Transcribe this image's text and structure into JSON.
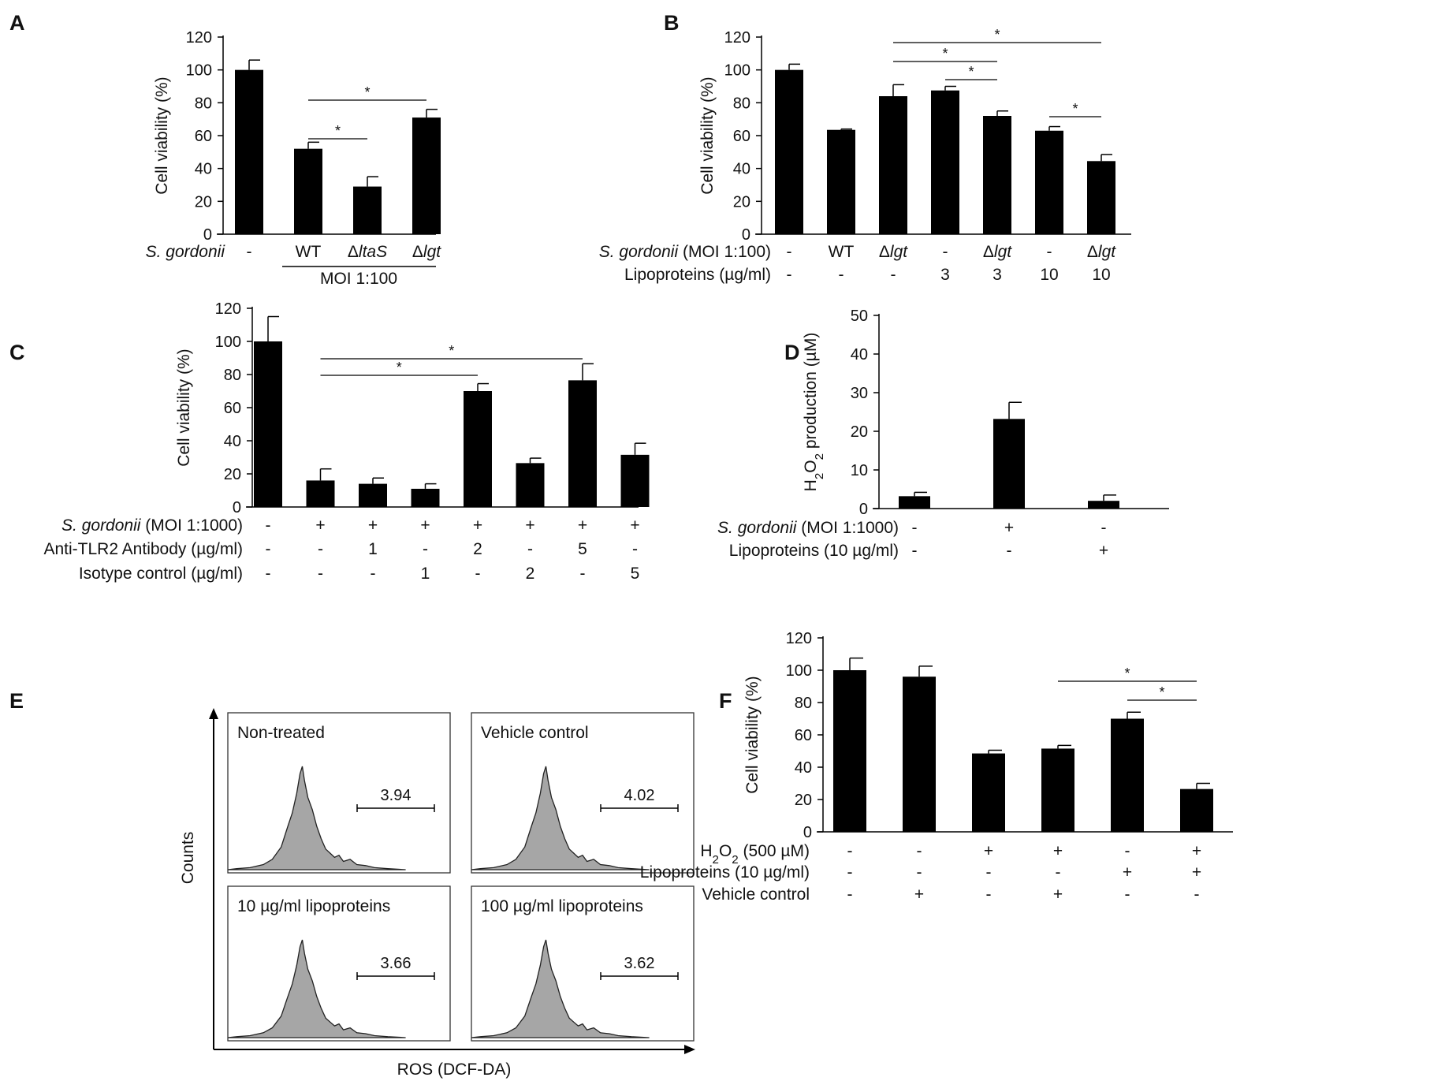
{
  "figure": {
    "panels": [
      "A",
      "B",
      "C",
      "D",
      "E",
      "F"
    ]
  },
  "chart_data": [
    {
      "panel": "A",
      "type": "bar",
      "ylabel": "Cell viability (%)",
      "ylim": [
        0,
        120
      ],
      "yticks": [
        0,
        20,
        40,
        60,
        80,
        100,
        120
      ],
      "values": [
        100,
        52,
        29,
        71
      ],
      "errors": [
        6,
        4,
        6,
        5
      ],
      "condition_rows": [
        {
          "label": "S. gordonii",
          "italic_label": true,
          "cells": [
            "-",
            "WT",
            "ΔltaS",
            "Δlgt"
          ]
        }
      ],
      "group_label": "MOI 1:100",
      "significance": [
        {
          "from": 1,
          "to": 2,
          "label": "*"
        },
        {
          "from": 1,
          "to": 3,
          "label": "*"
        }
      ]
    },
    {
      "panel": "B",
      "type": "bar",
      "ylabel": "Cell viability (%)",
      "ylim": [
        0,
        120
      ],
      "yticks": [
        0,
        20,
        40,
        60,
        80,
        100,
        120
      ],
      "values": [
        100,
        63.5,
        84,
        87.5,
        72,
        63,
        44.5
      ],
      "errors": [
        3.5,
        0.5,
        7,
        2.5,
        3,
        2.5,
        4
      ],
      "condition_rows": [
        {
          "label": "S. gordonii (MOI 1:100)",
          "cells": [
            "-",
            "WT",
            "Δlgt",
            "-",
            "Δlgt",
            "-",
            "Δlgt"
          ]
        },
        {
          "label": "Lipoproteins (µg/ml)",
          "cells": [
            "-",
            "-",
            "-",
            "3",
            "3",
            "10",
            "10"
          ]
        }
      ],
      "significance": [
        {
          "from": 2,
          "to": 6,
          "label": "*"
        },
        {
          "from": 2,
          "to": 4,
          "label": "*"
        },
        {
          "from": 3,
          "to": 4,
          "label": "*"
        },
        {
          "from": 5,
          "to": 6,
          "label": "*"
        }
      ]
    },
    {
      "panel": "C",
      "type": "bar",
      "ylabel": "Cell viability (%)",
      "ylim": [
        0,
        120
      ],
      "yticks": [
        0,
        20,
        40,
        60,
        80,
        100,
        120
      ],
      "values": [
        100,
        16,
        14,
        11,
        70,
        26.5,
        76.5,
        31.5
      ],
      "errors": [
        15,
        7,
        3.5,
        3,
        4.5,
        3,
        10,
        7
      ],
      "condition_rows": [
        {
          "label": "S. gordonii (MOI 1:1000)",
          "cells": [
            "-",
            "+",
            "+",
            "+",
            "+",
            "+",
            "+",
            "+"
          ]
        },
        {
          "label": "Anti-TLR2 Antibody (µg/ml)",
          "cells": [
            "-",
            "-",
            "1",
            "-",
            "2",
            "-",
            "5",
            "-"
          ]
        },
        {
          "label": "Isotype control (µg/ml)",
          "cells": [
            "-",
            "-",
            "-",
            "1",
            "-",
            "2",
            "-",
            "5"
          ]
        }
      ],
      "significance": [
        {
          "from": 1,
          "to": 6,
          "label": "*"
        },
        {
          "from": 1,
          "to": 4,
          "label": "*"
        }
      ]
    },
    {
      "panel": "D",
      "type": "bar",
      "ylabel": "H2O2 production (µM)",
      "ylim": [
        0,
        50
      ],
      "yticks": [
        0,
        10,
        20,
        30,
        40,
        50
      ],
      "values": [
        3.2,
        23.2,
        2
      ],
      "errors": [
        1,
        4.3,
        1.5
      ],
      "condition_rows": [
        {
          "label": "S. gordonii (MOI 1:1000)",
          "cells": [
            "-",
            "+",
            "-"
          ]
        },
        {
          "label": "Lipoproteins (10 µg/ml)",
          "cells": [
            "-",
            "-",
            "+"
          ]
        }
      ],
      "significance": []
    },
    {
      "panel": "E",
      "type": "histogram",
      "xlabel": "ROS (DCF-DA)",
      "ylabel": "Counts",
      "subplots": [
        {
          "title": "Non-treated",
          "gate_value": "3.94"
        },
        {
          "title": "Vehicle control",
          "gate_value": "4.02"
        },
        {
          "title": "10 µg/ml lipoproteins",
          "gate_value": "3.66"
        },
        {
          "title": "100 µg/ml lipoproteins",
          "gate_value": "3.62"
        }
      ]
    },
    {
      "panel": "F",
      "type": "bar",
      "ylabel": "Cell viability (%)",
      "ylim": [
        0,
        120
      ],
      "yticks": [
        0,
        20,
        40,
        60,
        80,
        100,
        120
      ],
      "values": [
        100,
        96,
        48.5,
        51.5,
        70,
        26.5
      ],
      "errors": [
        7.5,
        6.5,
        2,
        2,
        4,
        3.5
      ],
      "condition_rows": [
        {
          "label": "H2O2 (500 µM)",
          "cells": [
            "-",
            "-",
            "+",
            "+",
            "-",
            "+"
          ]
        },
        {
          "label": "Lipoproteins (10 µg/ml)",
          "cells": [
            "-",
            "-",
            "-",
            "-",
            "+",
            "+"
          ]
        },
        {
          "label": "Vehicle control",
          "cells": [
            "-",
            "+",
            "-",
            "+",
            "-",
            "-"
          ]
        }
      ],
      "significance": [
        {
          "from": 3,
          "to": 5,
          "label": "*"
        },
        {
          "from": 4,
          "to": 5,
          "label": "*"
        }
      ]
    }
  ]
}
